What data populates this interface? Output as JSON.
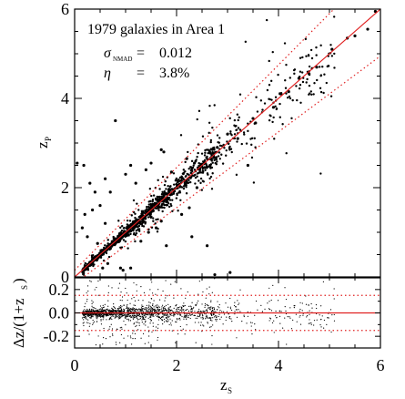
{
  "chart_data": [
    {
      "type": "scatter",
      "panel": "main",
      "title": "",
      "xlabel": "",
      "ylabel": "z_P",
      "xlim": [
        0,
        6
      ],
      "ylim": [
        0,
        6
      ],
      "x_ticks": [
        "0",
        "2",
        "4",
        "6"
      ],
      "y_ticks": [
        "0",
        "2",
        "4",
        "6"
      ],
      "annotations": {
        "line1": "1979  galaxies in Area 1",
        "sigma_symbol": "σ",
        "sigma_sub": "NMAD",
        "sigma_eq": "=",
        "sigma_value": "0.012",
        "eta_symbol": "η",
        "eta_eq": "=",
        "eta_value": "3.8%"
      },
      "reference_lines": [
        {
          "name": "one-to-one",
          "style": "solid",
          "color": "#e02020",
          "slope": 1.0,
          "intercept": 0
        },
        {
          "name": "outlier upper bound",
          "style": "dotted",
          "color": "#e02020",
          "slope": 1.15,
          "intercept": 0.15
        },
        {
          "name": "outlier lower bound",
          "style": "dotted",
          "color": "#e02020",
          "slope": 0.85,
          "intercept": -0.15
        }
      ],
      "series": [
        {
          "points": [
            [
              0.05,
              2.55
            ],
            [
              0.18,
              2.5
            ],
            [
              0.8,
              3.5
            ],
            [
              0.15,
              1.1
            ],
            [
              0.2,
              1.4
            ],
            [
              0.3,
              2.1
            ],
            [
              0.25,
              0.9
            ],
            [
              0.4,
              1.9
            ],
            [
              0.5,
              1.6
            ],
            [
              0.6,
              2.2
            ],
            [
              0.7,
              1.9
            ],
            [
              1.0,
              2.3
            ],
            [
              1.1,
              2.5
            ],
            [
              1.2,
              2.1
            ],
            [
              1.4,
              2.4
            ],
            [
              1.5,
              2.55
            ],
            [
              1.7,
              2.85
            ],
            [
              1.75,
              2.8
            ],
            [
              2.2,
              2.65
            ],
            [
              2.35,
              2.55
            ],
            [
              1.9,
              2.35
            ],
            [
              2.1,
              1.4
            ],
            [
              2.25,
              1.55
            ],
            [
              2.3,
              0.9
            ],
            [
              2.6,
              0.7
            ],
            [
              2.75,
              0.05
            ],
            [
              3.05,
              0.1
            ],
            [
              3.4,
              2.5
            ],
            [
              1.8,
              0.7
            ],
            [
              1.3,
              0.8
            ],
            [
              0.9,
              0.2
            ],
            [
              0.95,
              0.15
            ],
            [
              1.1,
              0.2
            ],
            [
              0.65,
              0.3
            ],
            [
              0.55,
              0.2
            ],
            [
              1.6,
              1.1
            ],
            [
              1.45,
              1.0
            ],
            [
              1.7,
              1.25
            ],
            [
              0.35,
              0.4
            ],
            [
              0.45,
              0.75
            ],
            [
              0.35,
              1.5
            ],
            [
              0.6,
              1.2
            ],
            [
              2.4,
              2.0
            ],
            [
              2.8,
              2.9
            ],
            [
              2.55,
              2.45
            ],
            [
              3.0,
              3.2
            ],
            [
              3.2,
              3.1
            ],
            [
              3.5,
              3.55
            ],
            [
              3.55,
              3.45
            ],
            [
              3.9,
              3.8
            ],
            [
              4.05,
              4.1
            ],
            [
              4.2,
              4.15
            ],
            [
              4.4,
              4.45
            ],
            [
              4.6,
              4.55
            ],
            [
              4.75,
              4.7
            ],
            [
              5.05,
              5.1
            ],
            [
              5.35,
              5.35
            ],
            [
              5.5,
              5.4
            ],
            [
              5.75,
              5.55
            ],
            [
              5.9,
              5.95
            ]
          ]
        }
      ]
    },
    {
      "type": "scatter",
      "panel": "residual",
      "xlabel": "z_S",
      "ylabel": "Δz/(1+z_S)",
      "xlim": [
        0,
        6
      ],
      "ylim": [
        -0.3,
        0.3
      ],
      "x_ticks": [
        "0",
        "2",
        "4",
        "6"
      ],
      "y_ticks": [
        "0.2",
        "0.0",
        "-0.2"
      ],
      "y_tick_values": [
        0.2,
        0.0,
        -0.2
      ],
      "reference_lines": [
        {
          "name": "zero",
          "style": "solid",
          "color": "#e02020",
          "y": 0.0
        },
        {
          "name": "upper outlier threshold",
          "style": "dotted",
          "color": "#e02020",
          "y": 0.15
        },
        {
          "name": "lower outlier threshold",
          "style": "dotted",
          "color": "#e02020",
          "y": -0.15
        }
      ]
    }
  ],
  "labels": {
    "zp_main": "z",
    "zp_sub": "P",
    "zs_main": "z",
    "zs_sub": "S",
    "resid_main": "Δz/(1+z",
    "resid_sub": "S",
    "resid_close": ")"
  }
}
